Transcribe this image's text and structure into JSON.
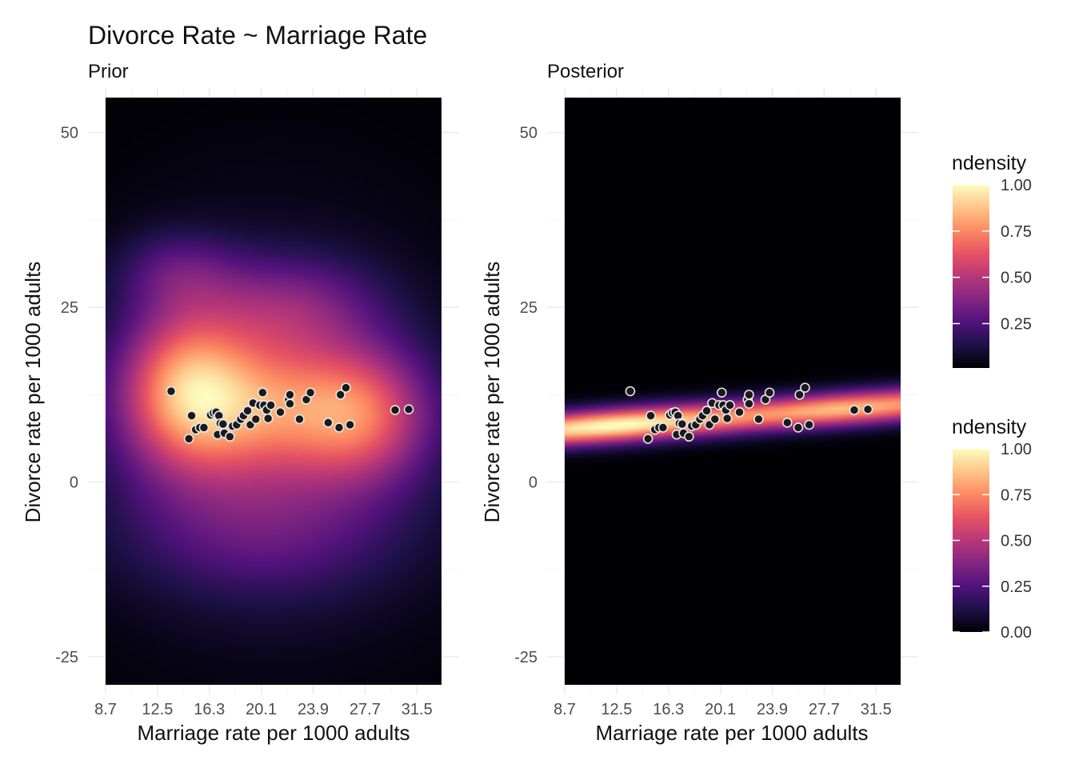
{
  "chart_title": "Divorce Rate ~ Marriage Rate",
  "chart_data": [
    {
      "type": "heatmap",
      "subtitle": "Prior",
      "xlabel": "Marriage rate per 1000 adults",
      "ylabel": "Divorce rate per 1000 adults",
      "x_ticks": [
        "8.7",
        "12.5",
        "16.3",
        "20.1",
        "23.9",
        "27.7",
        "31.5"
      ],
      "y_ticks": [
        "50",
        "25",
        "0",
        "-25"
      ],
      "x_tick_values": [
        8.7,
        12.5,
        16.3,
        20.1,
        23.9,
        27.7,
        31.5
      ],
      "y_tick_values": [
        50,
        25,
        0,
        -25
      ],
      "xlim": [
        8.7,
        33.3
      ],
      "ylim": [
        -29,
        55
      ],
      "fill": "ndensity",
      "density": "prior"
    },
    {
      "type": "heatmap",
      "subtitle": "Posterior",
      "xlabel": "Marriage rate per 1000 adults",
      "ylabel": "Divorce rate per 1000 adults",
      "x_ticks": [
        "8.7",
        "12.5",
        "16.3",
        "20.1",
        "23.9",
        "27.7",
        "31.5"
      ],
      "y_ticks": [
        "50",
        "25",
        "0",
        "-25"
      ],
      "x_tick_values": [
        8.7,
        12.5,
        16.3,
        20.1,
        23.9,
        27.7,
        31.5
      ],
      "y_tick_values": [
        50,
        25,
        0,
        -25
      ],
      "xlim": [
        8.7,
        33.3
      ],
      "ylim": [
        -29,
        55
      ],
      "fill": "ndensity",
      "density": "posterior"
    }
  ],
  "scatter_points": [
    [
      13.5,
      13.0
    ],
    [
      14.8,
      6.2
    ],
    [
      15.0,
      9.5
    ],
    [
      15.3,
      7.5
    ],
    [
      15.6,
      7.8
    ],
    [
      15.9,
      7.8
    ],
    [
      16.4,
      9.6
    ],
    [
      16.6,
      9.9
    ],
    [
      16.8,
      10.0
    ],
    [
      16.9,
      6.8
    ],
    [
      17.0,
      9.5
    ],
    [
      17.1,
      8.4
    ],
    [
      17.3,
      8.3
    ],
    [
      17.4,
      7.0
    ],
    [
      17.8,
      6.5
    ],
    [
      18.0,
      8.0
    ],
    [
      18.3,
      8.2
    ],
    [
      18.6,
      9.0
    ],
    [
      18.8,
      9.5
    ],
    [
      19.1,
      10.2
    ],
    [
      19.3,
      8.2
    ],
    [
      19.5,
      11.3
    ],
    [
      19.7,
      9.0
    ],
    [
      20.0,
      11.0
    ],
    [
      20.2,
      12.8
    ],
    [
      20.3,
      11.0
    ],
    [
      20.5,
      10.3
    ],
    [
      20.6,
      9.1
    ],
    [
      20.8,
      11.0
    ],
    [
      21.5,
      10.0
    ],
    [
      22.1,
      11.8
    ],
    [
      22.2,
      12.5
    ],
    [
      22.2,
      11.2
    ],
    [
      22.9,
      9.0
    ],
    [
      23.4,
      11.8
    ],
    [
      23.7,
      12.8
    ],
    [
      25.0,
      8.5
    ],
    [
      25.8,
      7.8
    ],
    [
      25.9,
      12.5
    ],
    [
      26.3,
      13.5
    ],
    [
      26.6,
      8.2
    ],
    [
      29.9,
      10.3
    ],
    [
      30.9,
      10.4
    ]
  ],
  "legends": [
    {
      "title": "ndensity",
      "labels": [
        "1.00",
        "0.75",
        "0.50",
        "0.25"
      ],
      "values": [
        1.0,
        0.75,
        0.5,
        0.25
      ]
    },
    {
      "title": "ndensity",
      "labels": [
        "1.00",
        "0.75",
        "0.50",
        "0.25",
        "0.00"
      ],
      "values": [
        1.0,
        0.75,
        0.5,
        0.25,
        0.0
      ]
    }
  ],
  "colormap": [
    "#000004",
    "#1d1147",
    "#51127c",
    "#822681",
    "#b73779",
    "#e75263",
    "#fc8961",
    "#fec488",
    "#fcfdbf"
  ]
}
